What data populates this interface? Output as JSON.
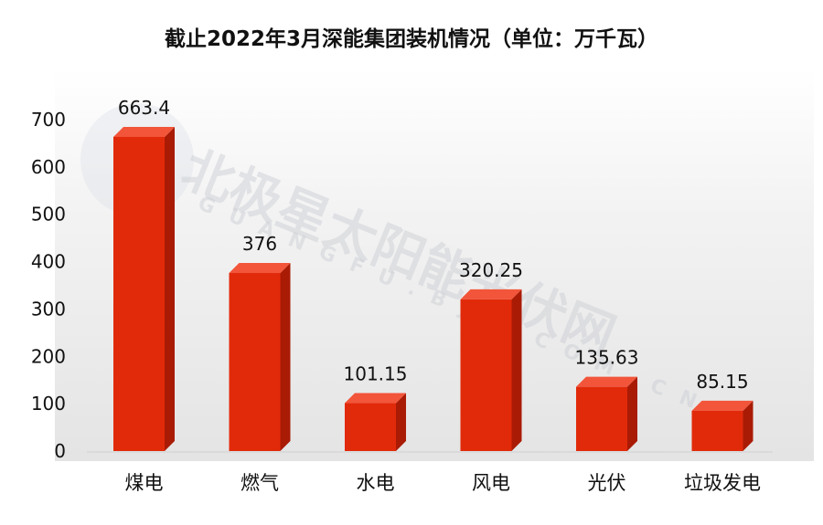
{
  "chart_data": {
    "type": "bar",
    "title": "截止2022年3月深能集团装机情况（单位：万千瓦）",
    "categories": [
      "煤电",
      "燃气",
      "水电",
      "风电",
      "光伏",
      "垃圾发电"
    ],
    "values": [
      663.4,
      376,
      101.15,
      320.25,
      135.63,
      85.15
    ],
    "value_labels": [
      "663.4",
      "376",
      "101.15",
      "320.25",
      "135.63",
      "85.15"
    ],
    "ylim": [
      0,
      700
    ],
    "yticks": [
      0,
      100,
      200,
      300,
      400,
      500,
      600,
      700
    ],
    "xlabel": "",
    "ylabel": "",
    "grid": false,
    "bar_style": "3d",
    "colors": {
      "bar_front": "#e12a0a",
      "bar_side": "#a91b05",
      "bar_top": "#f2553a"
    }
  },
  "watermark": {
    "text": "北极星太阳能光伏网",
    "subtext": "GUANGFU.BJX.COM.CN"
  }
}
